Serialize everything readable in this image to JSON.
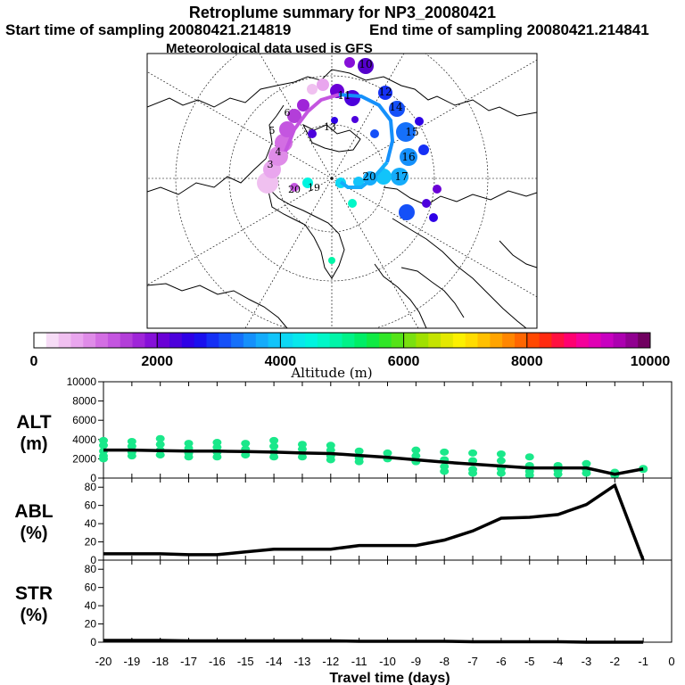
{
  "header": {
    "title": "Retroplume summary for NP3_20080421",
    "start_label": "Start time of sampling 20080421.214819",
    "end_label": "End time of sampling 20080421.214841",
    "met_label": "Meteorological data used is GFS"
  },
  "colorbar": {
    "ticks": [
      "0",
      "2000",
      "4000",
      "6000",
      "8000",
      "10000"
    ],
    "label": "Altitude (m)",
    "colors": [
      "#ffffff",
      "#f6dcf6",
      "#f0c0f0",
      "#e9a6ee",
      "#df8ce8",
      "#d36ee3",
      "#c455e0",
      "#b33ed9",
      "#9f25d8",
      "#8610d8",
      "#6a00d6",
      "#4c00dc",
      "#2e00e6",
      "#1a10ee",
      "#1530f5",
      "#1550f8",
      "#1570fa",
      "#1590fb",
      "#15acfb",
      "#12c4fa",
      "#0dd8f4",
      "#08e8ec",
      "#00f4e0",
      "#00f7c8",
      "#00f5a8",
      "#00f288",
      "#00ee66",
      "#10ea44",
      "#30e628",
      "#55e318",
      "#7ae010",
      "#a0e000",
      "#c4e300",
      "#e4e800",
      "#fcf000",
      "#ffdc00",
      "#ffc000",
      "#ffa400",
      "#ff8600",
      "#ff6600",
      "#ff4800",
      "#ff2a10",
      "#ff1040",
      "#ff0070",
      "#f4009a",
      "#e000b4",
      "#c800c0",
      "#ac00b0",
      "#900090",
      "#700060"
    ]
  },
  "map": {
    "labels": [
      {
        "text": "10",
        "color": "#5500cc"
      },
      {
        "text": "11",
        "color": "#6a00d6"
      },
      {
        "text": "12",
        "color": "#1570fa"
      },
      {
        "text": "13",
        "color": "#000000"
      },
      {
        "text": "14",
        "color": "#1570fa"
      },
      {
        "text": "15",
        "color": "#1570fa"
      },
      {
        "text": "16",
        "color": "#1590fb"
      },
      {
        "text": "17",
        "color": "#15acfb"
      },
      {
        "text": "20",
        "color": "#15acfb"
      },
      {
        "text": "19",
        "color": "#000000"
      },
      {
        "text": "20",
        "color": "#000000"
      },
      {
        "text": "5",
        "color": "#000000"
      },
      {
        "text": "6",
        "color": "#000000"
      },
      {
        "text": "3",
        "color": "#000000"
      },
      {
        "text": "4",
        "color": "#000000"
      }
    ]
  },
  "chart_data": [
    {
      "type": "line",
      "name": "ALT",
      "ylabel_line1": "ALT",
      "ylabel_line2": "(m)",
      "x": [
        -20,
        -19,
        -18,
        -17,
        -16,
        -15,
        -14,
        -13,
        -12,
        -11,
        -10,
        -9,
        -8,
        -7,
        -6,
        -5,
        -4,
        -3,
        -2,
        -1
      ],
      "values": [
        2900,
        2900,
        2850,
        2800,
        2800,
        2750,
        2700,
        2600,
        2550,
        2350,
        2150,
        1900,
        1650,
        1450,
        1250,
        1050,
        1050,
        1050,
        400,
        950
      ],
      "scatter": [
        [
          -20,
          3900
        ],
        [
          -20,
          3400
        ],
        [
          -20,
          2800
        ],
        [
          -20,
          2300
        ],
        [
          -20,
          2000
        ],
        [
          -19,
          3800
        ],
        [
          -19,
          3300
        ],
        [
          -19,
          2700
        ],
        [
          -19,
          2300
        ],
        [
          -18,
          4100
        ],
        [
          -18,
          3500
        ],
        [
          -18,
          2900
        ],
        [
          -18,
          2400
        ],
        [
          -17,
          3600
        ],
        [
          -17,
          3100
        ],
        [
          -17,
          2600
        ],
        [
          -17,
          2200
        ],
        [
          -16,
          3700
        ],
        [
          -16,
          3200
        ],
        [
          -16,
          2700
        ],
        [
          -16,
          2200
        ],
        [
          -15,
          3600
        ],
        [
          -15,
          3000
        ],
        [
          -15,
          2400
        ],
        [
          -14,
          3900
        ],
        [
          -14,
          3300
        ],
        [
          -14,
          2700
        ],
        [
          -14,
          2200
        ],
        [
          -13,
          3500
        ],
        [
          -13,
          3000
        ],
        [
          -13,
          2200
        ],
        [
          -12,
          3400
        ],
        [
          -12,
          2900
        ],
        [
          -12,
          2300
        ],
        [
          -12,
          1900
        ],
        [
          -11,
          2800
        ],
        [
          -11,
          2100
        ],
        [
          -11,
          1700
        ],
        [
          -10,
          2600
        ],
        [
          -10,
          2000
        ],
        [
          -9,
          2900
        ],
        [
          -9,
          2300
        ],
        [
          -9,
          1700
        ],
        [
          -8,
          2700
        ],
        [
          -8,
          1900
        ],
        [
          -8,
          1200
        ],
        [
          -8,
          700
        ],
        [
          -7,
          2600
        ],
        [
          -7,
          1800
        ],
        [
          -7,
          900
        ],
        [
          -7,
          500
        ],
        [
          -6,
          2500
        ],
        [
          -6,
          1800
        ],
        [
          -6,
          1000
        ],
        [
          -6,
          500
        ],
        [
          -5,
          2200
        ],
        [
          -5,
          1300
        ],
        [
          -5,
          700
        ],
        [
          -5,
          300
        ],
        [
          -4,
          1300
        ],
        [
          -4,
          800
        ],
        [
          -4,
          400
        ],
        [
          -3,
          1500
        ],
        [
          -3,
          900
        ],
        [
          -3,
          500
        ],
        [
          -2,
          600
        ],
        [
          -2,
          300
        ],
        [
          -1,
          1000
        ],
        [
          -1,
          900
        ]
      ],
      "ylim": [
        0,
        10000
      ],
      "yticks": [
        0,
        2000,
        4000,
        6000,
        8000,
        10000
      ]
    },
    {
      "type": "line",
      "name": "ABL",
      "ylabel_line1": "ABL",
      "ylabel_line2": "(%)",
      "x": [
        -20,
        -19,
        -18,
        -17,
        -16,
        -15,
        -14,
        -13,
        -12,
        -11,
        -10,
        -9,
        -8,
        -7,
        -6,
        -5,
        -4,
        -3,
        -2,
        -1
      ],
      "values": [
        7,
        7,
        7,
        6,
        6,
        9,
        12,
        12,
        12,
        16,
        16,
        16,
        22,
        32,
        46,
        47,
        50,
        61,
        82,
        0
      ],
      "ylim": [
        0,
        90
      ],
      "yticks": [
        0,
        20,
        40,
        60,
        80
      ]
    },
    {
      "type": "line",
      "name": "STR",
      "ylabel_line1": "STR",
      "ylabel_line2": "(%)",
      "x": [
        -20,
        -19,
        -18,
        -17,
        -16,
        -15,
        -14,
        -13,
        -12,
        -11,
        -10,
        -9,
        -8,
        -7,
        -6,
        -5,
        -4,
        -3,
        -2,
        -1
      ],
      "values": [
        2,
        2,
        2,
        1.5,
        1.5,
        1.5,
        1.5,
        1.5,
        1.5,
        1,
        1,
        1,
        1,
        0.5,
        0.5,
        0.5,
        0.5,
        0,
        0,
        0
      ],
      "ylim": [
        0,
        90
      ],
      "yticks": [
        0,
        20,
        40,
        60,
        80
      ]
    }
  ],
  "xaxis": {
    "ticks": [
      "-20",
      "-19",
      "-18",
      "-17",
      "-16",
      "-15",
      "-14",
      "-13",
      "-12",
      "-11",
      "-10",
      "-9",
      "-8",
      "-7",
      "-6",
      "-5",
      "-4",
      "-3",
      "-2",
      "-1",
      "0"
    ],
    "label": "Travel time (days)",
    "xlim": [
      -20,
      0
    ]
  }
}
